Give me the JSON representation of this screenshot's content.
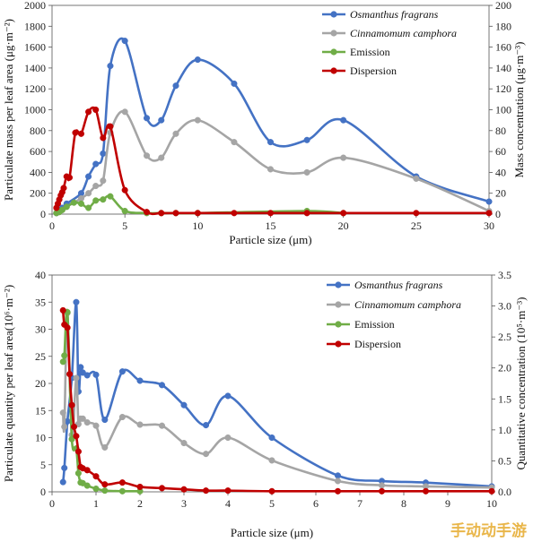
{
  "watermark": "手动动手游",
  "chart_data": [
    {
      "type": "line",
      "xlabel": "Particle size (μm)",
      "ylabel": "Particulate mass per leaf area (μg·m⁻²)",
      "ylabel_right": "Mass concentration (μg·m⁻³)",
      "xlim": [
        0,
        30
      ],
      "ylim": [
        0,
        2000
      ],
      "ylim_right": [
        0,
        200
      ],
      "x_ticks": [
        "0",
        "5",
        "10",
        "15",
        "20",
        "25",
        "30"
      ],
      "y_ticks": [
        "0",
        "200",
        "400",
        "600",
        "800",
        "1000",
        "1200",
        "1400",
        "1600",
        "1800",
        "2000"
      ],
      "y_ticks_right": [
        "0",
        "20",
        "40",
        "60",
        "80",
        "100",
        "120",
        "140",
        "160",
        "180",
        "200"
      ],
      "legend_position": "top-right",
      "series": [
        {
          "name": "Osmanthus fragrans",
          "italic": true,
          "color": "#4472c4",
          "axis": "left",
          "x": [
            0.3,
            0.5,
            0.7,
            1.0,
            2.0,
            2.5,
            3.0,
            3.5,
            4.0,
            5.0,
            6.5,
            7.5,
            8.5,
            10.0,
            12.5,
            15.0,
            17.5,
            20.0,
            25.0,
            30.0
          ],
          "y": [
            10,
            30,
            60,
            100,
            200,
            360,
            480,
            580,
            1420,
            1660,
            920,
            900,
            1230,
            1480,
            1250,
            690,
            710,
            900,
            360,
            120
          ]
        },
        {
          "name": "Cinnamomum camphora",
          "italic": true,
          "color": "#a5a5a5",
          "axis": "left",
          "x": [
            0.3,
            0.5,
            0.7,
            1.0,
            2.0,
            2.5,
            3.0,
            3.5,
            4.0,
            5.0,
            6.5,
            7.5,
            8.5,
            10.0,
            12.5,
            15.0,
            17.5,
            20.0,
            25.0,
            30.0
          ],
          "y": [
            10,
            20,
            40,
            70,
            150,
            200,
            270,
            320,
            780,
            980,
            560,
            540,
            770,
            900,
            690,
            430,
            400,
            540,
            340,
            30
          ]
        },
        {
          "name": "Emission",
          "italic": false,
          "color": "#70ad47",
          "axis": "right",
          "x": [
            0.3,
            0.5,
            0.7,
            1.0,
            1.5,
            2.0,
            2.5,
            3.0,
            3.5,
            4.0,
            5.0,
            6.5,
            7.5,
            8.5,
            10.0,
            17.5,
            20.0
          ],
          "y": [
            1,
            2,
            4,
            7,
            11,
            10,
            6,
            13,
            14,
            17,
            3,
            1,
            1,
            1,
            1,
            3,
            1
          ]
        },
        {
          "name": "Dispersion",
          "italic": false,
          "color": "#c00000",
          "axis": "right",
          "x": [
            0.3,
            0.4,
            0.5,
            0.6,
            0.7,
            0.8,
            1.0,
            1.2,
            1.6,
            2.0,
            2.5,
            3.0,
            3.5,
            4.0,
            5.0,
            6.5,
            7.5,
            8.5,
            10.0,
            12.5,
            15.0,
            17.5,
            20.0,
            25.0,
            30.0
          ],
          "y": [
            6,
            10,
            14,
            18,
            21,
            25,
            36,
            35,
            78,
            77,
            98,
            100,
            73,
            84,
            23,
            2,
            1,
            1,
            1,
            1,
            1,
            1,
            1,
            1,
            1
          ]
        }
      ]
    },
    {
      "type": "line",
      "xlabel": "Particle size (μm)",
      "ylabel": "Particulate quantity per leaf area(10⁶·m⁻²)",
      "ylabel_right": "Quantitative concentration (10⁵·m⁻³)",
      "xlim": [
        0,
        10
      ],
      "ylim": [
        0,
        40
      ],
      "ylim_right": [
        0,
        3.5
      ],
      "x_ticks": [
        "0",
        "1",
        "2",
        "3",
        "4",
        "5",
        "6",
        "7",
        "8",
        "9",
        "10"
      ],
      "y_ticks": [
        "0",
        "5",
        "10",
        "15",
        "20",
        "25",
        "30",
        "35",
        "40"
      ],
      "y_ticks_right": [
        "0.0",
        "0.5",
        "1.0",
        "1.5",
        "2.0",
        "2.5",
        "3.0",
        "3.5"
      ],
      "legend_position": "top-right",
      "series": [
        {
          "name": "Osmanthus fragrans",
          "italic": true,
          "color": "#4472c4",
          "axis": "left",
          "x": [
            0.25,
            0.28,
            0.35,
            0.45,
            0.55,
            0.6,
            0.65,
            0.7,
            0.8,
            1.0,
            1.2,
            1.6,
            2.0,
            2.5,
            3.0,
            3.5,
            4.0,
            5.0,
            6.5,
            7.5,
            8.5,
            10.0
          ],
          "y": [
            1.8,
            4.4,
            13,
            21,
            35,
            18.5,
            23,
            22,
            21.5,
            21.6,
            13.3,
            22.2,
            20.5,
            19.7,
            16,
            12.3,
            17.7,
            10,
            3,
            2,
            1.7,
            1
          ]
        },
        {
          "name": "Cinnamomum camphora",
          "italic": true,
          "color": "#a5a5a5",
          "axis": "left",
          "x": [
            0.25,
            0.28,
            0.35,
            0.45,
            0.55,
            0.6,
            0.65,
            0.7,
            0.8,
            1.0,
            1.2,
            1.6,
            2.0,
            2.5,
            3.0,
            3.5,
            4.0,
            5.0,
            6.5,
            7.5,
            8.5,
            10.0
          ],
          "y": [
            14.6,
            12,
            33,
            10.5,
            21,
            12.5,
            13.5,
            13.5,
            12.8,
            12.2,
            8.2,
            13.8,
            12.4,
            12.2,
            9,
            7,
            10,
            5.8,
            2,
            1.2,
            1,
            0.8
          ]
        },
        {
          "name": "Emission",
          "italic": false,
          "color": "#70ad47",
          "axis": "right",
          "x": [
            0.25,
            0.28,
            0.35,
            0.45,
            0.55,
            0.6,
            0.65,
            0.7,
            0.8,
            1.0,
            1.2,
            1.6,
            2.0
          ],
          "y": [
            2.1,
            2.2,
            2.9,
            0.85,
            0.7,
            0.3,
            0.15,
            0.14,
            0.1,
            0.05,
            0.02,
            0.01,
            0.01
          ]
        },
        {
          "name": "Dispersion",
          "italic": false,
          "color": "#c00000",
          "axis": "right",
          "x": [
            0.25,
            0.28,
            0.35,
            0.4,
            0.45,
            0.5,
            0.55,
            0.6,
            0.65,
            0.7,
            0.8,
            1.0,
            1.2,
            1.6,
            2.0,
            2.5,
            3.0,
            3.5,
            4.0,
            5.0,
            6.5,
            7.5,
            8.5,
            10.0
          ],
          "y": [
            2.93,
            2.7,
            2.65,
            1.9,
            1.4,
            1.05,
            0.9,
            0.65,
            0.4,
            0.38,
            0.35,
            0.25,
            0.12,
            0.15,
            0.08,
            0.06,
            0.04,
            0.02,
            0.02,
            0.01,
            0.01,
            0.01,
            0.01,
            0.01
          ]
        }
      ]
    }
  ]
}
